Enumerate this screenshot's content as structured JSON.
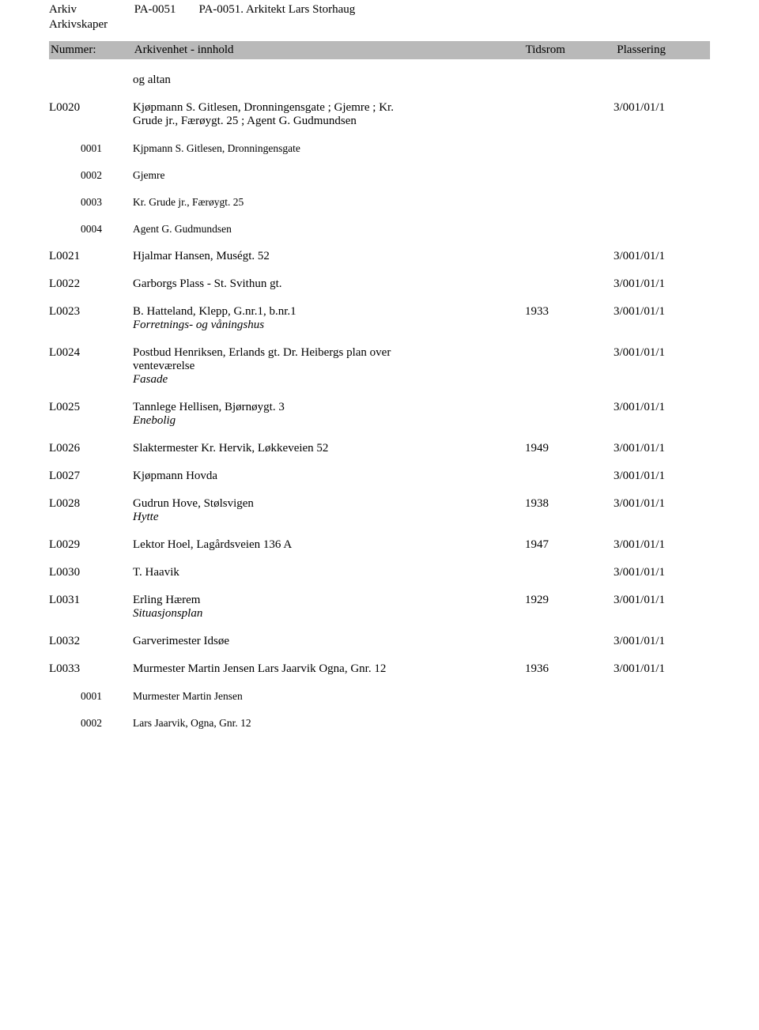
{
  "gray_bar_bg": "#b9b9b9",
  "header": {
    "row1_label": "Arkiv",
    "row1_code": "PA-0051",
    "row1_title": "PA-0051. Arkitekt Lars Storhaug",
    "row2_label": "Arkivskaper"
  },
  "columns": {
    "nummer": "Nummer:",
    "innhold": "Arkivenhet - innhold",
    "tidsrom": "Tidsrom",
    "plassering": "Plassering"
  },
  "orphan_text": "og altan",
  "L0020": {
    "id": "L0020",
    "line1": "Kjøpmann S. Gitlesen, Dronningensgate ; Gjemre ; Kr.",
    "line2": "Grude jr., Færøygt. 25 ; Agent G. Gudmundsen",
    "place": "3/001/01/1",
    "subs": [
      {
        "id": "0001",
        "text": "Kjpmann S. Gitlesen, Dronningensgate"
      },
      {
        "id": "0002",
        "text": "Gjemre"
      },
      {
        "id": "0003",
        "text": "Kr. Grude jr., Færøygt. 25"
      },
      {
        "id": "0004",
        "text": "Agent G. Gudmundsen"
      }
    ]
  },
  "L0021": {
    "id": "L0021",
    "text": "Hjalmar Hansen, Muségt. 52",
    "place": "3/001/01/1"
  },
  "L0022": {
    "id": "L0022",
    "text": "Garborgs Plass - St. Svithun gt.",
    "place": "3/001/01/1"
  },
  "L0023": {
    "id": "L0023",
    "text": "B. Hatteland, Klepp, G.nr.1, b.nr.1",
    "ital": "Forretnings- og våningshus",
    "year": "1933",
    "place": "3/001/01/1"
  },
  "L0024": {
    "id": "L0024",
    "line1": "Postbud Henriksen, Erlands gt.   Dr. Heibergs plan over",
    "line2": "venteværelse",
    "ital": "Fasade",
    "place": "3/001/01/1"
  },
  "L0025": {
    "id": "L0025",
    "text": "Tannlege Hellisen, Bjørnøygt. 3",
    "ital": "Enebolig",
    "place": "3/001/01/1"
  },
  "L0026": {
    "id": "L0026",
    "text": "Slaktermester Kr. Hervik, Løkkeveien 52",
    "year": "1949",
    "place": "3/001/01/1"
  },
  "L0027": {
    "id": "L0027",
    "text": "Kjøpmann Hovda",
    "place": "3/001/01/1"
  },
  "L0028": {
    "id": "L0028",
    "text": "Gudrun Hove, Stølsvigen",
    "ital": "Hytte",
    "year": "1938",
    "place": "3/001/01/1"
  },
  "L0029": {
    "id": "L0029",
    "text": "Lektor Hoel, Lagårdsveien 136 A",
    "year": "1947",
    "place": "3/001/01/1"
  },
  "L0030": {
    "id": "L0030",
    "text": "T. Haavik",
    "place": "3/001/01/1"
  },
  "L0031": {
    "id": "L0031",
    "text": "Erling Hærem",
    "ital": "Situasjonsplan",
    "year": "1929",
    "place": "3/001/01/1"
  },
  "L0032": {
    "id": "L0032",
    "text": "Garverimester Idsøe",
    "place": "3/001/01/1"
  },
  "L0033": {
    "id": "L0033",
    "text": "Murmester Martin Jensen Lars Jaarvik Ogna, Gnr. 12",
    "year": "1936",
    "place": "3/001/01/1",
    "subs": [
      {
        "id": "0001",
        "text": "Murmester Martin Jensen"
      },
      {
        "id": "0002",
        "text": "Lars Jaarvik, Ogna, Gnr. 12"
      }
    ]
  }
}
